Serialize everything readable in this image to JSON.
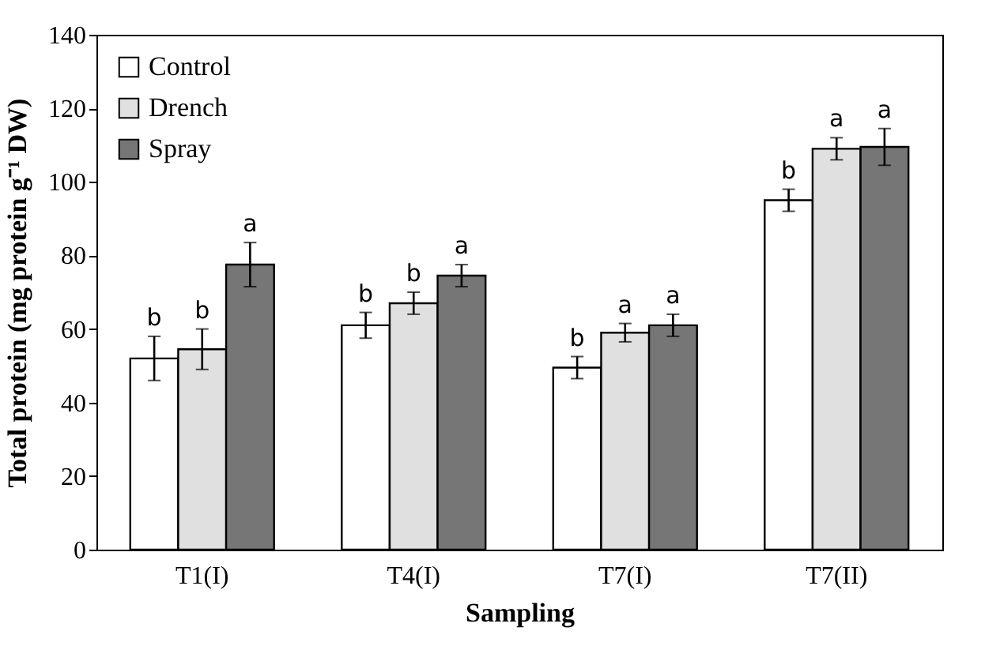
{
  "chart_data": {
    "type": "bar",
    "xlabel": "Sampling",
    "ylabel": "Total protein (mg protein g⁻¹ DW)",
    "categories": [
      "T1(I)",
      "T4(I)",
      "T7(I)",
      "T7(II)"
    ],
    "series": [
      {
        "name": "Control",
        "color": "#ffffff",
        "values": [
          52,
          61,
          49.5,
          95
        ],
        "errors": [
          6,
          3.5,
          3,
          3
        ],
        "value_labels": [
          "b",
          "b",
          "b",
          "b"
        ]
      },
      {
        "name": "Drench",
        "color": "#e0e0e0",
        "values": [
          54.5,
          67,
          59,
          109
        ],
        "errors": [
          5.5,
          3,
          2.5,
          3
        ],
        "value_labels": [
          "b",
          "b",
          "a",
          "a"
        ]
      },
      {
        "name": "Spray",
        "color": "#767676",
        "values": [
          77.5,
          74.5,
          61,
          109.5
        ],
        "errors": [
          6,
          3,
          3,
          5
        ],
        "value_labels": [
          "a",
          "a",
          "a",
          "a"
        ]
      }
    ],
    "ylim": [
      0,
      140
    ],
    "yticks": [
      0,
      20,
      40,
      60,
      80,
      100,
      120,
      140
    ],
    "grid": false,
    "legend": "top left"
  }
}
